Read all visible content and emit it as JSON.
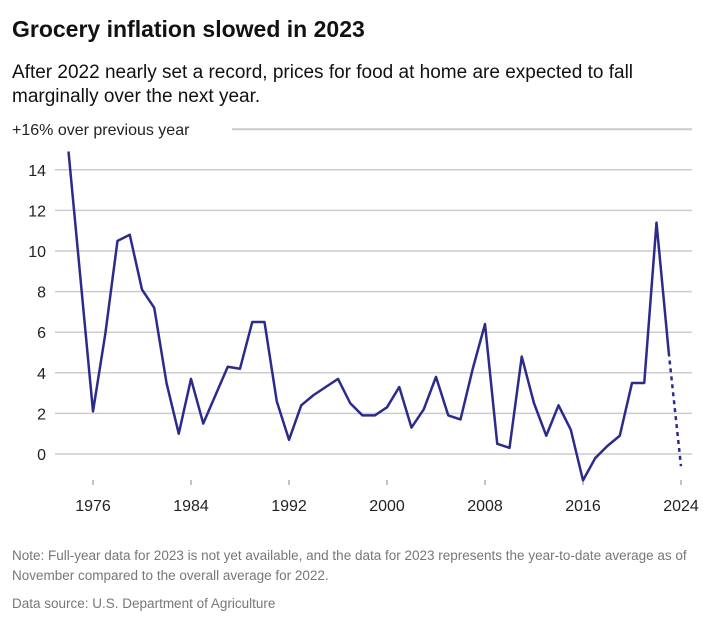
{
  "title": "Grocery inflation slowed in 2023",
  "subtitle": "After 2022 nearly set a record, prices for food at home are expected to fall marginally over the next year.",
  "note": "Note: Full-year data for 2023 is not yet available, and the data for 2023 represents the year-to-date average as of November compared to the overall average for 2022.",
  "source": "Data source: U.S. Department of Agriculture",
  "chart_data": {
    "type": "line",
    "title": "Grocery inflation slowed in 2023",
    "ylabel": "+16% over previous year",
    "top_label": "+16% over previous year",
    "ylim": [
      -1.5,
      16
    ],
    "yticks": [
      0,
      2,
      4,
      6,
      8,
      10,
      12,
      14
    ],
    "xticks": [
      1976,
      1984,
      1992,
      2000,
      2008,
      2016,
      2024
    ],
    "grid": true,
    "line_color": "#2b2b8c",
    "x": [
      1974,
      1975,
      1976,
      1977,
      1978,
      1979,
      1980,
      1981,
      1982,
      1983,
      1984,
      1985,
      1986,
      1987,
      1988,
      1989,
      1990,
      1991,
      1992,
      1993,
      1994,
      1995,
      1996,
      1997,
      1998,
      1999,
      2000,
      2001,
      2002,
      2003,
      2004,
      2005,
      2006,
      2007,
      2008,
      2009,
      2010,
      2011,
      2012,
      2013,
      2014,
      2015,
      2016,
      2017,
      2018,
      2019,
      2020,
      2021,
      2022,
      2023
    ],
    "values": [
      14.9,
      8.5,
      2.1,
      5.9,
      10.5,
      10.8,
      8.1,
      7.2,
      3.5,
      1.0,
      3.7,
      1.5,
      2.9,
      4.3,
      4.2,
      6.5,
      6.5,
      2.6,
      0.7,
      2.4,
      2.9,
      3.3,
      3.7,
      2.5,
      1.9,
      1.9,
      2.3,
      3.3,
      1.3,
      2.2,
      3.8,
      1.9,
      1.7,
      4.2,
      6.4,
      0.5,
      0.3,
      4.8,
      2.5,
      0.9,
      2.4,
      1.2,
      -1.3,
      -0.2,
      0.4,
      0.9,
      3.5,
      3.5,
      11.4,
      5.0
    ],
    "forecast": {
      "x": [
        2023,
        2024
      ],
      "values": [
        5.0,
        -0.6
      ],
      "style": "dotted"
    }
  }
}
